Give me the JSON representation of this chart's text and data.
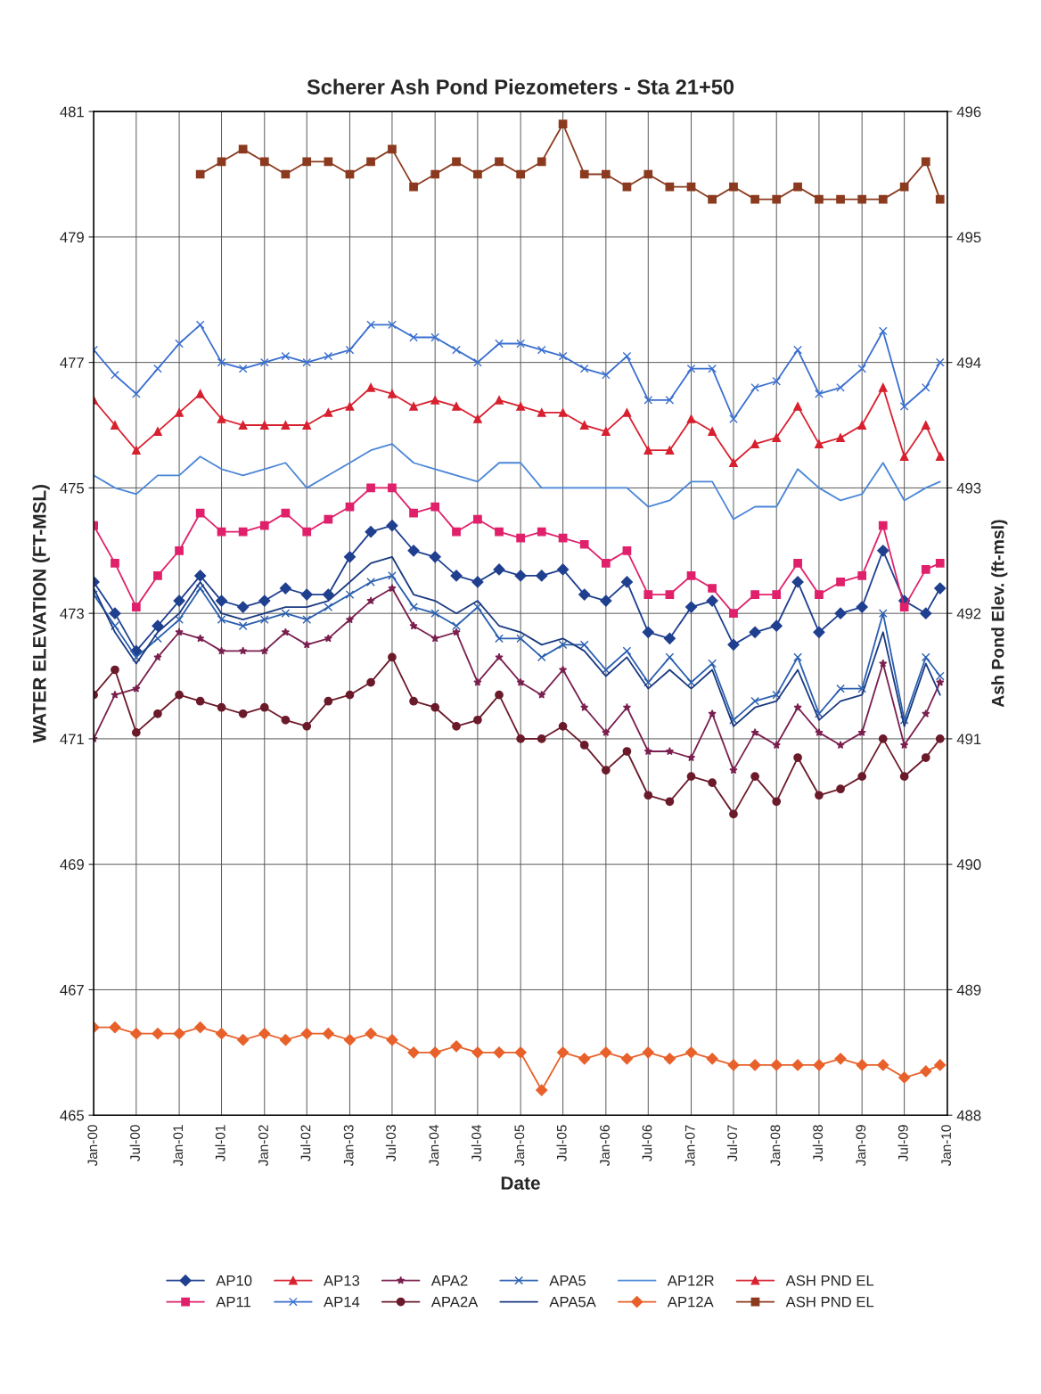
{
  "chart_data": {
    "type": "line",
    "title": "Scherer Ash Pond Piezometers - Sta 21+50",
    "xlabel": "Date",
    "ylabel": "WATER ELEVATION (FT-MSL)",
    "y2label": "Ash Pond Elev. (ft-msl)",
    "x": [
      "2000-01",
      "2000-04",
      "2000-07",
      "2000-10",
      "2001-01",
      "2001-04",
      "2001-07",
      "2001-10",
      "2002-01",
      "2002-04",
      "2002-07",
      "2002-10",
      "2003-01",
      "2003-04",
      "2003-07",
      "2003-10",
      "2004-01",
      "2004-04",
      "2004-07",
      "2004-10",
      "2005-01",
      "2005-04",
      "2005-07",
      "2005-10",
      "2006-01",
      "2006-04",
      "2006-07",
      "2006-10",
      "2007-01",
      "2007-04",
      "2007-07",
      "2007-10",
      "2008-01",
      "2008-04",
      "2008-07",
      "2008-10",
      "2009-01",
      "2009-04",
      "2009-07",
      "2009-10",
      "2009-12"
    ],
    "xlim": [
      "2000-01",
      "2010-01"
    ],
    "xticks": [
      {
        "value": "2000-01",
        "label": "Jan-00"
      },
      {
        "value": "2000-07",
        "label": "Jul-00"
      },
      {
        "value": "2001-01",
        "label": "Jan-01"
      },
      {
        "value": "2001-07",
        "label": "Jul-01"
      },
      {
        "value": "2002-01",
        "label": "Jan-02"
      },
      {
        "value": "2002-07",
        "label": "Jul-02"
      },
      {
        "value": "2003-01",
        "label": "Jan-03"
      },
      {
        "value": "2003-07",
        "label": "Jul-03"
      },
      {
        "value": "2004-01",
        "label": "Jan-04"
      },
      {
        "value": "2004-07",
        "label": "Jul-04"
      },
      {
        "value": "2005-01",
        "label": "Jan-05"
      },
      {
        "value": "2005-07",
        "label": "Jul-05"
      },
      {
        "value": "2006-01",
        "label": "Jan-06"
      },
      {
        "value": "2006-07",
        "label": "Jul-06"
      },
      {
        "value": "2007-01",
        "label": "Jan-07"
      },
      {
        "value": "2007-07",
        "label": "Jul-07"
      },
      {
        "value": "2008-01",
        "label": "Jan-08"
      },
      {
        "value": "2008-07",
        "label": "Jul-08"
      },
      {
        "value": "2009-01",
        "label": "Jan-09"
      },
      {
        "value": "2009-07",
        "label": "Jul-09"
      },
      {
        "value": "2010-01",
        "label": "Jan-10"
      }
    ],
    "ylim": [
      465,
      481
    ],
    "yticks": [
      465,
      467,
      469,
      471,
      473,
      475,
      477,
      479,
      481
    ],
    "y2lim": [
      488,
      496
    ],
    "y2ticks": [
      488,
      489,
      490,
      491,
      492,
      493,
      494,
      495,
      496
    ],
    "grid": true,
    "legend": "bottom",
    "series": [
      {
        "name": "AP10",
        "color": "#1f3f8f",
        "marker": "diamond",
        "values": [
          473.5,
          473.0,
          472.4,
          472.8,
          473.2,
          473.6,
          473.2,
          473.1,
          473.2,
          473.4,
          473.3,
          473.3,
          473.9,
          474.3,
          474.4,
          474.0,
          473.9,
          473.6,
          473.5,
          473.7,
          473.6,
          473.6,
          473.7,
          473.3,
          473.2,
          473.5,
          472.7,
          472.6,
          473.1,
          473.2,
          472.5,
          472.7,
          472.8,
          473.5,
          472.7,
          473.0,
          473.1,
          474.0,
          473.2,
          473.0,
          473.4
        ]
      },
      {
        "name": "AP11",
        "color": "#e0206a",
        "marker": "square",
        "values": [
          474.4,
          473.8,
          473.1,
          473.6,
          474.0,
          474.6,
          474.3,
          474.3,
          474.4,
          474.6,
          474.3,
          474.5,
          474.7,
          475.0,
          475.0,
          474.6,
          474.7,
          474.3,
          474.5,
          474.3,
          474.2,
          474.3,
          474.2,
          474.1,
          473.8,
          474.0,
          473.3,
          473.3,
          473.6,
          473.4,
          473.0,
          473.3,
          473.3,
          473.8,
          473.3,
          473.5,
          473.6,
          474.4,
          473.1,
          473.7,
          473.8
        ]
      },
      {
        "name": "AP13",
        "color": "#d8202f",
        "marker": "triangle",
        "values": [
          476.4,
          476.0,
          475.6,
          475.9,
          476.2,
          476.5,
          476.1,
          476.0,
          476.0,
          476.0,
          476.0,
          476.2,
          476.3,
          476.6,
          476.5,
          476.3,
          476.4,
          476.3,
          476.1,
          476.4,
          476.3,
          476.2,
          476.2,
          476.0,
          475.9,
          476.2,
          475.6,
          475.6,
          476.1,
          475.9,
          475.4,
          475.7,
          475.8,
          476.3,
          475.7,
          475.8,
          476.0,
          476.6,
          475.5,
          476.0,
          475.5
        ]
      },
      {
        "name": "AP14",
        "color": "#3a6fd0",
        "marker": "cross",
        "values": [
          477.2,
          476.8,
          476.5,
          476.9,
          477.3,
          477.6,
          477.0,
          476.9,
          477.0,
          477.1,
          477.0,
          477.1,
          477.2,
          477.6,
          477.6,
          477.4,
          477.4,
          477.2,
          477.0,
          477.3,
          477.3,
          477.2,
          477.1,
          476.9,
          476.8,
          477.1,
          476.4,
          476.4,
          476.9,
          476.9,
          476.1,
          476.6,
          476.7,
          477.2,
          476.5,
          476.6,
          476.9,
          477.5,
          476.3,
          476.6,
          477.0
        ]
      },
      {
        "name": "APA2",
        "color": "#7a1f4f",
        "marker": "star",
        "values": [
          471.0,
          471.7,
          471.8,
          472.3,
          472.7,
          472.6,
          472.4,
          472.4,
          472.4,
          472.7,
          472.5,
          472.6,
          472.9,
          473.2,
          473.4,
          472.8,
          472.6,
          472.7,
          471.9,
          472.3,
          471.9,
          471.7,
          472.1,
          471.5,
          471.1,
          471.5,
          470.8,
          470.8,
          470.7,
          471.4,
          470.5,
          471.1,
          470.9,
          471.5,
          471.1,
          470.9,
          471.1,
          472.2,
          470.9,
          471.4,
          471.9
        ]
      },
      {
        "name": "APA2A",
        "color": "#6b1a2a",
        "marker": "circle",
        "values": [
          471.7,
          472.1,
          471.1,
          471.4,
          471.7,
          471.6,
          471.5,
          471.4,
          471.5,
          471.3,
          471.2,
          471.6,
          471.7,
          471.9,
          472.3,
          471.6,
          471.5,
          471.2,
          471.3,
          471.7,
          471.0,
          471.0,
          471.2,
          470.9,
          470.5,
          470.8,
          470.1,
          470.0,
          470.4,
          470.3,
          469.8,
          470.4,
          470.0,
          470.7,
          470.1,
          470.2,
          470.4,
          471.0,
          470.4,
          470.7,
          471.0
        ]
      },
      {
        "name": "APA5",
        "color": "#2a5fb0",
        "marker": "cross",
        "values": [
          473.3,
          472.8,
          472.3,
          472.6,
          472.9,
          473.4,
          472.9,
          472.8,
          472.9,
          473.0,
          472.9,
          473.1,
          473.3,
          473.5,
          473.6,
          473.1,
          473.0,
          472.8,
          473.1,
          472.6,
          472.6,
          472.3,
          472.5,
          472.5,
          472.1,
          472.4,
          471.9,
          472.3,
          471.9,
          472.2,
          471.3,
          471.6,
          471.7,
          472.3,
          471.4,
          471.8,
          471.8,
          473.0,
          471.3,
          472.3,
          472.0
        ]
      },
      {
        "name": "APA5A",
        "color": "#1a3a80",
        "marker": "none",
        "values": [
          473.4,
          472.7,
          472.2,
          472.7,
          473.0,
          473.5,
          473.0,
          472.9,
          473.0,
          473.1,
          473.1,
          473.2,
          473.5,
          473.8,
          473.9,
          473.3,
          473.2,
          473.0,
          473.2,
          472.8,
          472.7,
          472.5,
          472.6,
          472.4,
          472.0,
          472.3,
          471.8,
          472.1,
          471.8,
          472.1,
          471.2,
          471.5,
          471.6,
          472.1,
          471.3,
          471.6,
          471.7,
          472.7,
          471.2,
          472.2,
          471.7
        ]
      },
      {
        "name": "AP12R",
        "color": "#4a86d8",
        "marker": "none",
        "values": [
          475.2,
          475.0,
          474.9,
          475.2,
          475.2,
          475.5,
          475.3,
          475.2,
          475.3,
          475.4,
          475.0,
          475.2,
          475.4,
          475.6,
          475.7,
          475.4,
          475.3,
          475.2,
          475.1,
          475.4,
          475.4,
          475.0,
          475.0,
          475.0,
          475.0,
          475.0,
          474.7,
          474.8,
          475.1,
          475.1,
          474.5,
          474.7,
          474.7,
          475.3,
          475.0,
          474.8,
          474.9,
          475.4,
          474.8,
          475.0,
          475.1
        ]
      },
      {
        "name": "AP12A",
        "color": "#e8602a",
        "marker": "diamond",
        "values": [
          466.4,
          466.4,
          466.3,
          466.3,
          466.3,
          466.4,
          466.3,
          466.2,
          466.3,
          466.2,
          466.3,
          466.3,
          466.2,
          466.3,
          466.2,
          466.0,
          466.0,
          466.1,
          466.0,
          466.0,
          466.0,
          465.4,
          466.0,
          465.9,
          466.0,
          465.9,
          466.0,
          465.9,
          466.0,
          465.9,
          465.8,
          465.8,
          465.8,
          465.8,
          465.8,
          465.9,
          465.8,
          465.8,
          465.6,
          465.7,
          465.8
        ]
      },
      {
        "name": "ASH PND EL",
        "color": "#d8202f",
        "marker": "triangle",
        "values": [
          null,
          null,
          null,
          null,
          null,
          null,
          null,
          null,
          null,
          null,
          null,
          null,
          null,
          null,
          null,
          null,
          null,
          null,
          null,
          null,
          null,
          null,
          null,
          null,
          null,
          null,
          null,
          null,
          null,
          null,
          null,
          null,
          null,
          null,
          null,
          null,
          null,
          null,
          null,
          null,
          null
        ]
      },
      {
        "name": "ASH PND EL",
        "color": "#8b3a1f",
        "marker": "square",
        "axis": "y2",
        "values": [
          null,
          null,
          null,
          null,
          null,
          495.5,
          495.6,
          495.7,
          495.6,
          495.5,
          495.6,
          495.6,
          495.5,
          495.6,
          495.7,
          495.4,
          495.5,
          495.6,
          495.5,
          495.6,
          495.5,
          495.6,
          495.9,
          495.5,
          495.5,
          495.4,
          495.5,
          495.4,
          495.4,
          495.3,
          495.4,
          495.3,
          495.3,
          495.4,
          495.3,
          495.3,
          495.3,
          495.3,
          495.4,
          495.6,
          495.3
        ]
      }
    ]
  }
}
